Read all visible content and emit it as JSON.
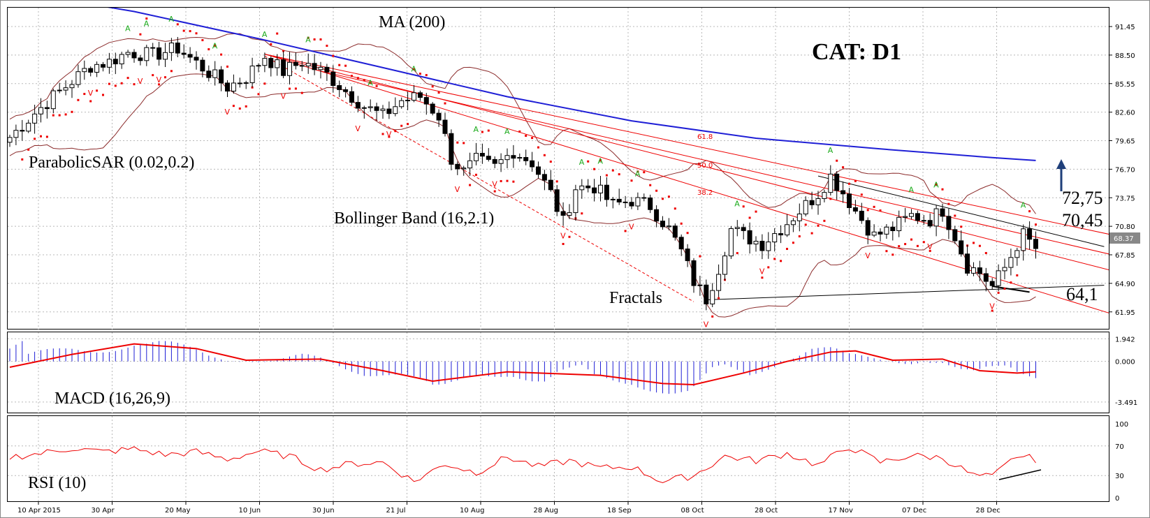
{
  "chart_data": {
    "type": "candlestick",
    "title": "CAT: D1",
    "x_ticks": [
      "10 Apr 2015",
      "30 Apr",
      "20 May",
      "10 Jun",
      "30 Jun",
      "21 Jul",
      "10 Aug",
      "28 Aug",
      "18 Sep",
      "08 Oct",
      "28 Oct",
      "17 Nov",
      "07 Dec",
      "28 Dec"
    ],
    "price_axis": {
      "ticks": [
        "91.45",
        "88.50",
        "85.55",
        "82.60",
        "79.65",
        "76.70",
        "73.75",
        "70.80",
        "67.85",
        "64.90",
        "61.95"
      ],
      "ylim": [
        60.2,
        93.4
      ],
      "current_price": "68.37"
    },
    "macd_axis": {
      "ticks": [
        "1.942",
        "0.000",
        "-3.491"
      ],
      "ylim": [
        -4.4,
        2.5
      ]
    },
    "rsi_axis": {
      "ticks": [
        "100",
        "70",
        "30",
        "0"
      ],
      "ylim": [
        0,
        100
      ]
    },
    "annotations": {
      "ma": "MA (200)",
      "sar": "ParabolicSAR (0.02,0.2)",
      "bollinger": "Bollinger Band (16,2.1)",
      "fractals": "Fractals",
      "macd": "MACD (16,26,9)",
      "rsi": "RSI (10)"
    },
    "price_labels": [
      "72,75",
      "70,45",
      "64,1"
    ],
    "fib_levels": [
      "61.8",
      "50.0",
      "38.2"
    ],
    "fractal_up": "A",
    "fractal_down": "V",
    "close_path": [
      [
        0,
        80.0
      ],
      [
        4,
        82.5
      ],
      [
        7,
        84.2
      ],
      [
        10,
        85.8
      ],
      [
        13,
        87.4
      ],
      [
        16,
        87.8
      ],
      [
        19,
        88.8
      ],
      [
        23,
        88.5
      ],
      [
        27,
        89.2
      ],
      [
        31,
        87.2
      ],
      [
        35,
        85.2
      ],
      [
        38,
        86.2
      ],
      [
        41,
        88.4
      ],
      [
        44,
        86.8
      ],
      [
        47,
        87.8
      ],
      [
        51,
        86.5
      ],
      [
        54,
        84.8
      ],
      [
        57,
        83.2
      ],
      [
        60,
        82.2
      ],
      [
        63,
        83.8
      ],
      [
        66,
        84.2
      ],
      [
        69,
        82.2
      ],
      [
        71,
        77.8
      ],
      [
        73,
        76.4
      ],
      [
        75,
        77.6
      ],
      [
        78,
        76.9
      ],
      [
        81,
        78.6
      ],
      [
        84,
        77.4
      ],
      [
        87,
        74.2
      ],
      [
        89,
        71.2
      ],
      [
        91,
        74.8
      ],
      [
        94,
        74.9
      ],
      [
        97,
        73.0
      ],
      [
        100,
        73.5
      ],
      [
        103,
        72.9
      ],
      [
        106,
        70.5
      ],
      [
        108,
        68.2
      ],
      [
        110,
        65.1
      ],
      [
        112,
        63.3
      ],
      [
        114,
        66.5
      ],
      [
        116,
        70.5
      ],
      [
        118,
        69.8
      ],
      [
        121,
        69.0
      ],
      [
        124,
        70.6
      ],
      [
        127,
        72.4
      ],
      [
        130,
        74.2
      ],
      [
        132,
        76.0
      ],
      [
        134,
        74.3
      ],
      [
        136,
        72.4
      ],
      [
        139,
        69.8
      ],
      [
        142,
        70.6
      ],
      [
        145,
        71.9
      ],
      [
        148,
        71.5
      ],
      [
        150,
        72.5
      ],
      [
        152,
        69.8
      ],
      [
        154,
        66.7
      ],
      [
        156,
        66.0
      ],
      [
        158,
        64.6
      ],
      [
        160,
        66.5
      ],
      [
        162,
        68.9
      ],
      [
        163,
        69.9
      ],
      [
        165,
        68.5
      ]
    ],
    "ma200_path": [
      [
        0,
        95.2
      ],
      [
        20,
        93.0
      ],
      [
        40,
        90.2
      ],
      [
        60,
        87.2
      ],
      [
        80,
        84.2
      ],
      [
        100,
        81.7
      ],
      [
        120,
        79.9
      ],
      [
        140,
        78.8
      ],
      [
        158,
        77.9
      ],
      [
        165,
        77.6
      ]
    ],
    "macd_signal_path": [
      [
        0,
        -0.5
      ],
      [
        10,
        0.6
      ],
      [
        20,
        1.5
      ],
      [
        30,
        1.1
      ],
      [
        38,
        0.1
      ],
      [
        50,
        0.2
      ],
      [
        60,
        -0.8
      ],
      [
        68,
        -1.7
      ],
      [
        80,
        -0.9
      ],
      [
        95,
        -1.2
      ],
      [
        105,
        -1.9
      ],
      [
        110,
        -2.0
      ],
      [
        118,
        -1.0
      ],
      [
        125,
        0.0
      ],
      [
        132,
        0.8
      ],
      [
        136,
        0.9
      ],
      [
        142,
        0.1
      ],
      [
        150,
        0.2
      ],
      [
        156,
        -0.8
      ],
      [
        162,
        -1.0
      ],
      [
        165,
        -0.9
      ]
    ],
    "rsi_path": [
      [
        0,
        55
      ],
      [
        5,
        60
      ],
      [
        10,
        67
      ],
      [
        15,
        62
      ],
      [
        20,
        66
      ],
      [
        25,
        58
      ],
      [
        30,
        62
      ],
      [
        35,
        52
      ],
      [
        40,
        63
      ],
      [
        45,
        56
      ],
      [
        50,
        38
      ],
      [
        55,
        46
      ],
      [
        60,
        48
      ],
      [
        65,
        22
      ],
      [
        70,
        46
      ],
      [
        75,
        34
      ],
      [
        80,
        55
      ],
      [
        85,
        42
      ],
      [
        90,
        50
      ],
      [
        95,
        40
      ],
      [
        100,
        42
      ],
      [
        105,
        22
      ],
      [
        110,
        30
      ],
      [
        115,
        56
      ],
      [
        120,
        50
      ],
      [
        125,
        60
      ],
      [
        130,
        44
      ],
      [
        135,
        69
      ],
      [
        140,
        48
      ],
      [
        145,
        57
      ],
      [
        150,
        54
      ],
      [
        155,
        30
      ],
      [
        158,
        28
      ],
      [
        162,
        57
      ],
      [
        165,
        52
      ]
    ]
  }
}
